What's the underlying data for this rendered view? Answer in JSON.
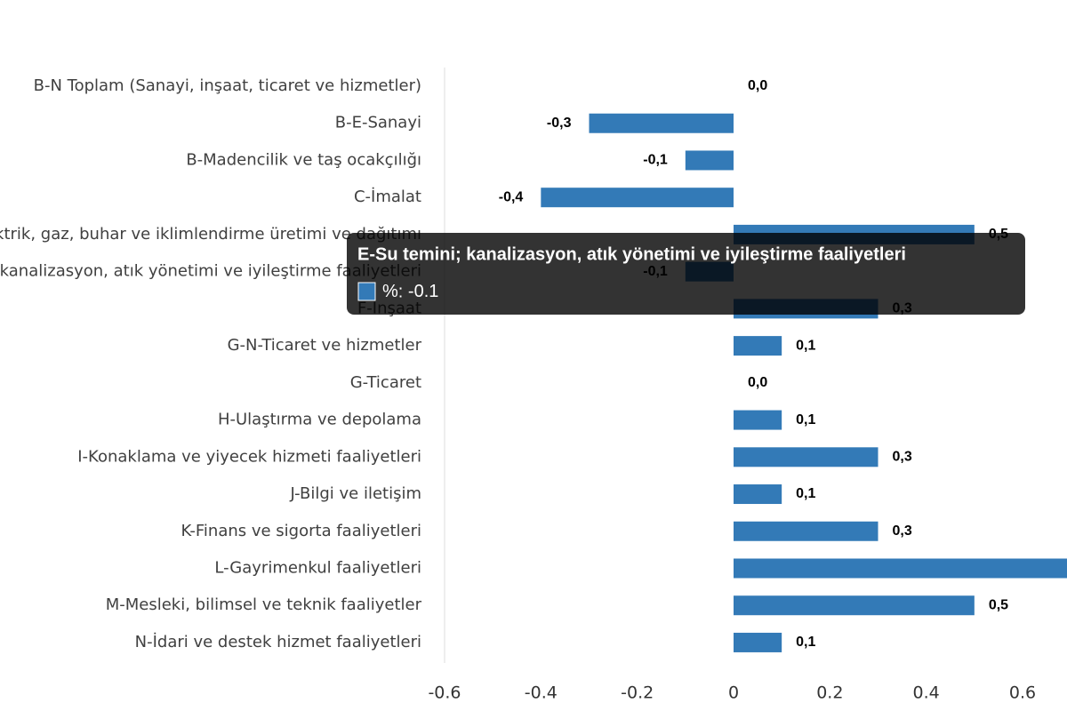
{
  "chart_data": {
    "type": "barh",
    "categories": [
      "B-N Toplam (Sanayi, inşaat, ticaret ve hizmetler)",
      "B-E-Sanayi",
      "B-Madencilik ve taş ocakçılığı",
      "C-İmalat",
      "D-Elektrik, gaz, buhar ve iklimlendirme üretimi ve dağıtımı",
      "E-Su temini; kanalizasyon, atık yönetimi ve iyileştirme faaliyetleri",
      "F-İnşaat",
      "G-N-Ticaret ve hizmetler",
      "G-Ticaret",
      "H-Ulaştırma ve depolama",
      "I-Konaklama ve yiyecek hizmeti faaliyetleri",
      "J-Bilgi ve iletişim",
      "K-Finans ve sigorta faaliyetleri",
      "L-Gayrimenkul faaliyetleri",
      "M-Mesleki, bilimsel ve teknik faaliyetler",
      "N-İdari ve destek hizmet faaliyetleri"
    ],
    "series_name": "%",
    "values": [
      0,
      -0.3,
      -0.1,
      -0.4,
      0.5,
      -0.1,
      0.3,
      0.1,
      0,
      0.1,
      0.3,
      0.1,
      0.3,
      0.7,
      0.5,
      0.1
    ],
    "value_labels": [
      "0,0",
      "-0,3",
      "-0,1",
      "-0,4",
      "0,5",
      "-0,1",
      "0,3",
      "0,1",
      "0,0",
      "0,1",
      "0,3",
      "0,1",
      "0,3",
      null,
      "0,5",
      "0,1"
    ],
    "color": "#337ab7",
    "xlim": [
      -0.6,
      0.8
    ],
    "xticks": [
      -0.6,
      -0.4,
      -0.2,
      0,
      0.2,
      0.4,
      0.6
    ],
    "tooltip_index": 5
  }
}
